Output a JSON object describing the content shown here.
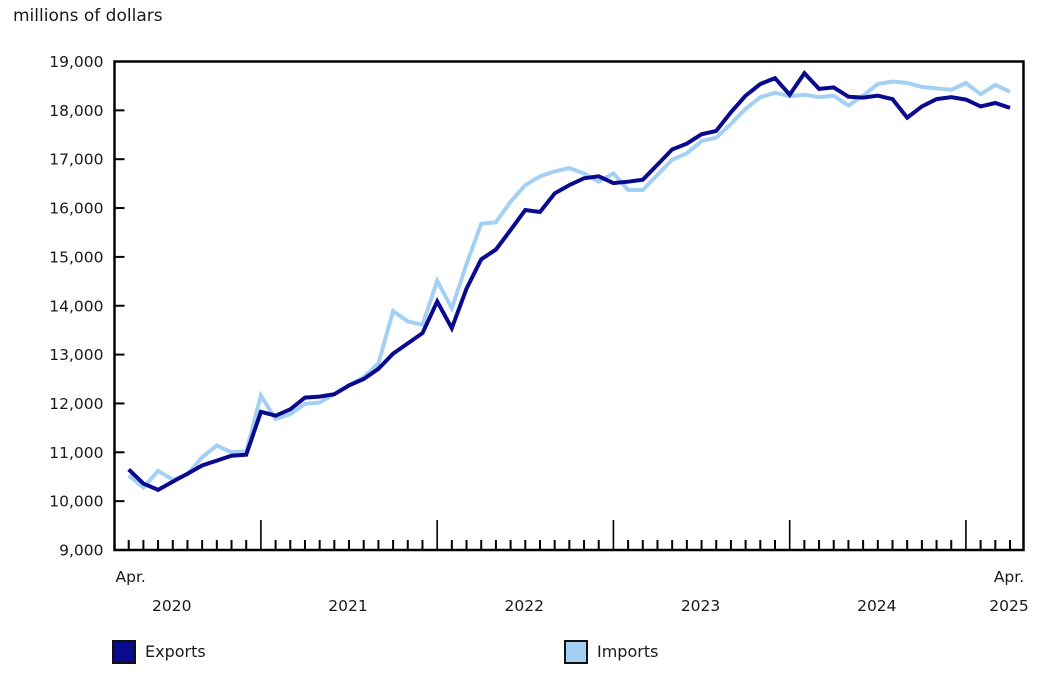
{
  "title": "millions of dollars",
  "legend": {
    "exports_label": "Exports",
    "imports_label": "Imports"
  },
  "colors": {
    "exports": "#0a0a8f",
    "imports": "#a3d0f3",
    "axis": "#000000",
    "text": "#1a1a1a"
  },
  "chart_data": {
    "type": "line",
    "title": "millions of dollars",
    "ylabel": "millions of dollars",
    "grid": false,
    "legend_position": "bottom",
    "ylim": [
      9000,
      19000
    ],
    "ytick_step": 1000,
    "ytick_labels": [
      "9,000",
      "10,000",
      "11,000",
      "12,000",
      "13,000",
      "14,000",
      "15,000",
      "16,000",
      "17,000",
      "18,000",
      "19,000"
    ],
    "x_first_label": "Apr.",
    "x_last_label": "Apr.",
    "year_labels": [
      {
        "label": "2020",
        "at": "2020-07"
      },
      {
        "label": "2021",
        "at": "2021-07"
      },
      {
        "label": "2022",
        "at": "2022-07"
      },
      {
        "label": "2023",
        "at": "2023-07"
      },
      {
        "label": "2024",
        "at": "2024-07"
      },
      {
        "label": "2025",
        "at": "2025-04"
      }
    ],
    "x": [
      "2020-04",
      "2020-05",
      "2020-06",
      "2020-07",
      "2020-08",
      "2020-09",
      "2020-10",
      "2020-11",
      "2020-12",
      "2021-01",
      "2021-02",
      "2021-03",
      "2021-04",
      "2021-05",
      "2021-06",
      "2021-07",
      "2021-08",
      "2021-09",
      "2021-10",
      "2021-11",
      "2021-12",
      "2022-01",
      "2022-02",
      "2022-03",
      "2022-04",
      "2022-05",
      "2022-06",
      "2022-07",
      "2022-08",
      "2022-09",
      "2022-10",
      "2022-11",
      "2022-12",
      "2023-01",
      "2023-02",
      "2023-03",
      "2023-04",
      "2023-05",
      "2023-06",
      "2023-07",
      "2023-08",
      "2023-09",
      "2023-10",
      "2023-11",
      "2023-12",
      "2024-01",
      "2024-02",
      "2024-03",
      "2024-04",
      "2024-05",
      "2024-06",
      "2024-07",
      "2024-08",
      "2024-09",
      "2024-10",
      "2024-11",
      "2024-12",
      "2025-01",
      "2025-02",
      "2025-03",
      "2025-04"
    ],
    "series": [
      {
        "name": "Exports",
        "color": "#0a0a8f",
        "values": [
          10650,
          10360,
          10230,
          10400,
          10560,
          10730,
          10830,
          10930,
          10950,
          11830,
          11750,
          11880,
          12120,
          12140,
          12190,
          12370,
          12500,
          12710,
          13020,
          13230,
          13440,
          14090,
          13540,
          14350,
          14950,
          15150,
          15550,
          15960,
          15920,
          16300,
          16470,
          16610,
          16650,
          16510,
          16540,
          16580,
          16890,
          17200,
          17320,
          17510,
          17580,
          17960,
          18300,
          18540,
          18660,
          18320,
          18760,
          18440,
          18470,
          18280,
          18260,
          18300,
          18230,
          17850,
          18080,
          18230,
          18270,
          18220,
          18080,
          18150,
          18050
        ]
      },
      {
        "name": "Imports",
        "color": "#a3d0f3",
        "values": [
          10530,
          10280,
          10620,
          10440,
          10550,
          10900,
          11140,
          11000,
          11020,
          12160,
          11680,
          11780,
          11990,
          12020,
          12190,
          12370,
          12540,
          12820,
          13890,
          13680,
          13610,
          14510,
          13950,
          14850,
          15680,
          15710,
          16130,
          16470,
          16650,
          16750,
          16820,
          16710,
          16540,
          16710,
          16370,
          16370,
          16680,
          16990,
          17120,
          17370,
          17440,
          17720,
          18030,
          18270,
          18360,
          18290,
          18320,
          18270,
          18300,
          18100,
          18300,
          18540,
          18590,
          18560,
          18480,
          18450,
          18420,
          18560,
          18330,
          18520,
          18380
        ]
      }
    ]
  }
}
